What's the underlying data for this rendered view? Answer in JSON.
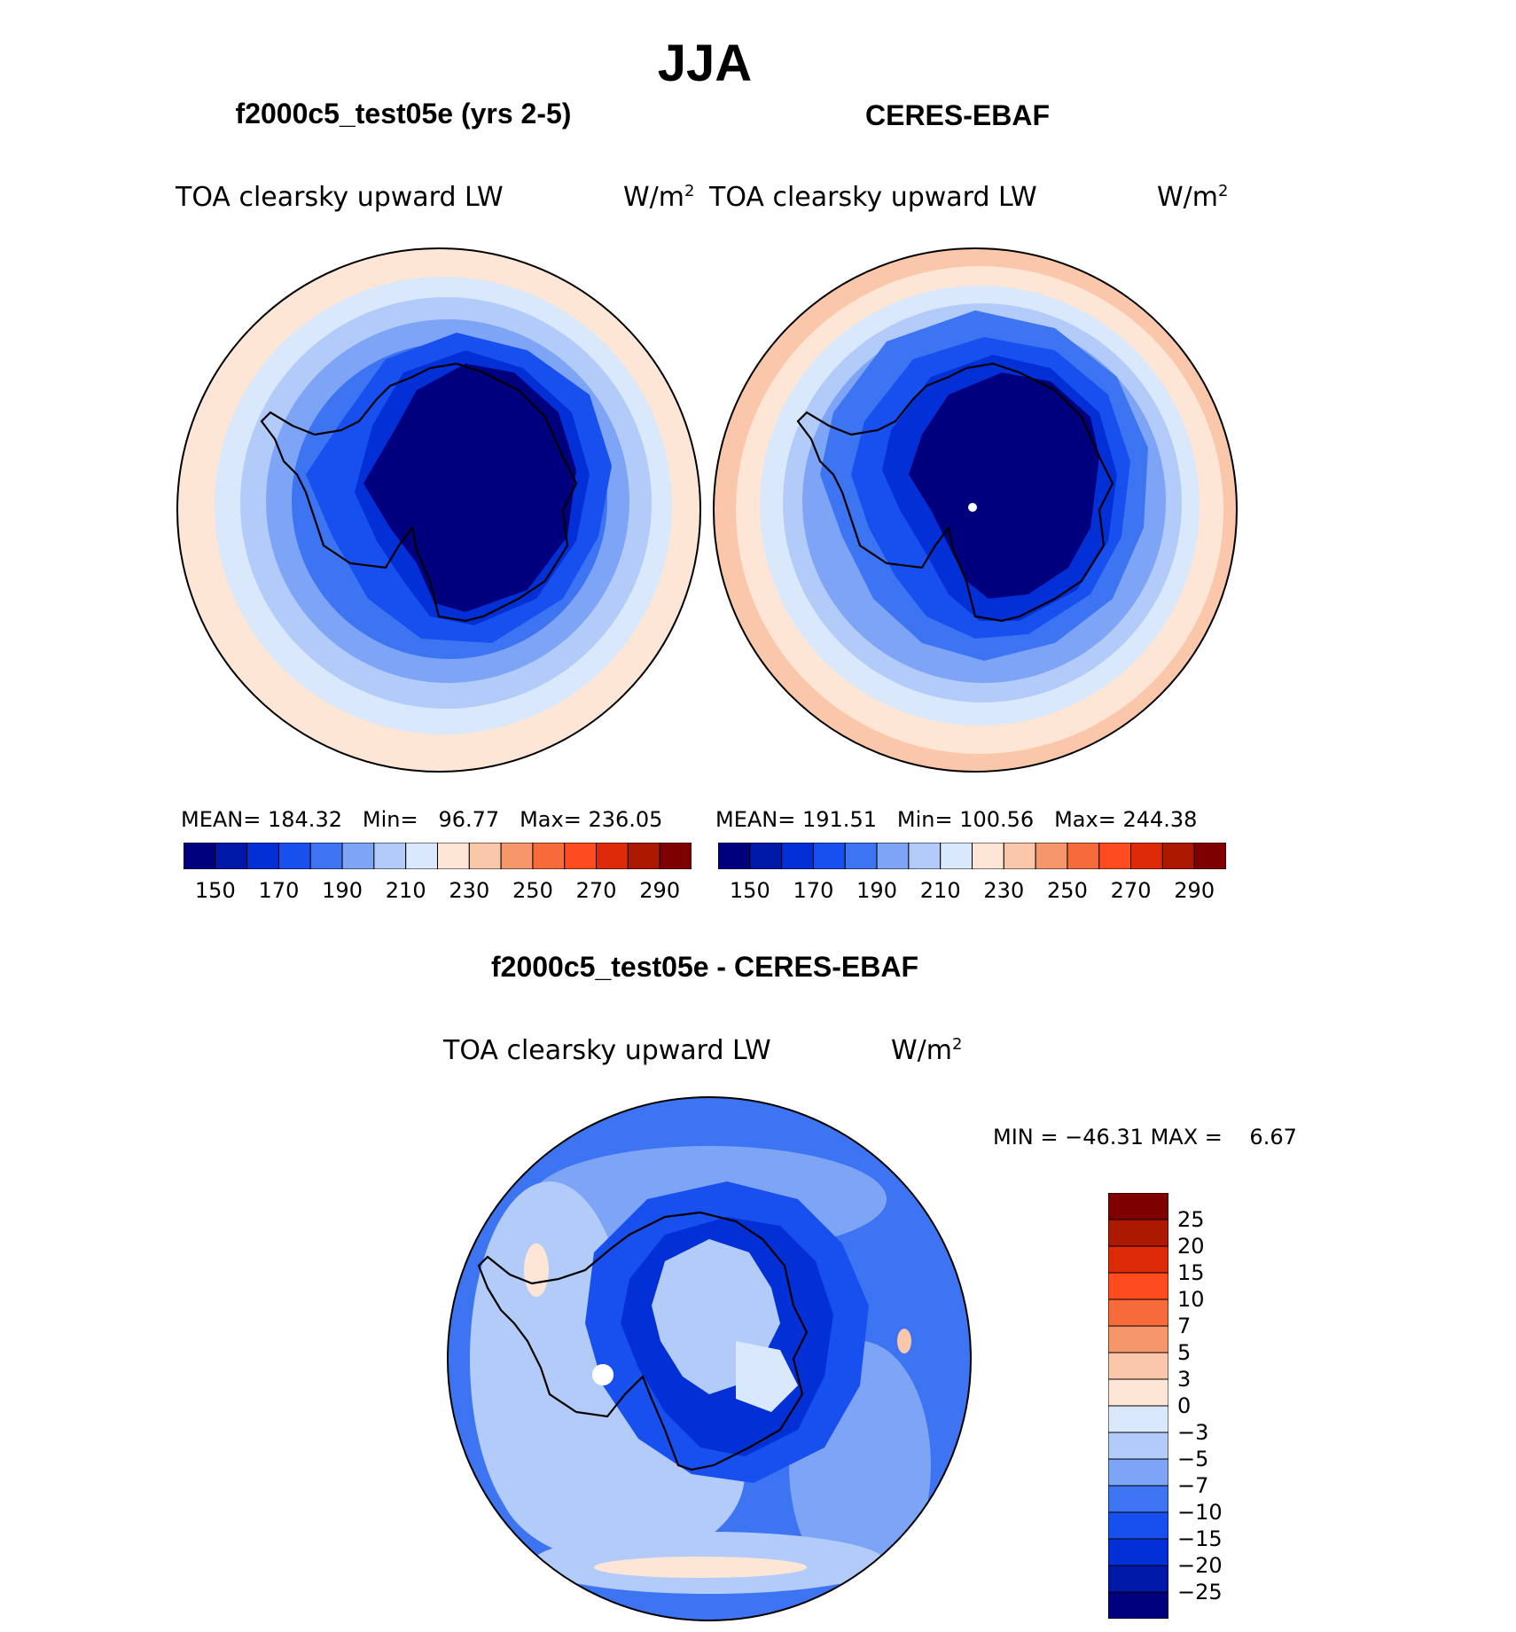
{
  "title": "JJA",
  "panels": [
    {
      "id": "model",
      "header": "f2000c5_test05e (yrs 2-5)",
      "field_label": "TOA clearsky upward LW",
      "units_base": "W/m",
      "units_exp": "2",
      "stats": {
        "mean_label": "MEAN=",
        "mean": "184.32",
        "min_label": "Min=",
        "min": "96.77",
        "max_label": "Max=",
        "max": "236.05"
      }
    },
    {
      "id": "obs",
      "header": "CERES-EBAF",
      "field_label": "TOA clearsky upward LW",
      "units_base": "W/m",
      "units_exp": "2",
      "stats": {
        "mean_label": "MEAN=",
        "mean": "191.51",
        "min_label": "Min=",
        "min": "100.56",
        "max_label": "Max=",
        "max": "244.38"
      }
    }
  ],
  "diff_panel": {
    "header": "f2000c5_test05e - CERES-EBAF",
    "field_label": "TOA clearsky upward LW",
    "units_base": "W/m",
    "units_exp": "2",
    "min_label": "MIN =",
    "min": "−46.31",
    "max_label": "MAX =",
    "max": "6.67"
  },
  "colorbar_abs": {
    "colors": [
      "#00007f",
      "#0018a8",
      "#0230d6",
      "#1850f0",
      "#3c74f2",
      "#7ea4f6",
      "#b2cbf8",
      "#d9e8fb",
      "#fde6d6",
      "#fbc7aa",
      "#f5976a",
      "#f76a3a",
      "#ff4b1d",
      "#dd2a08",
      "#ad1800",
      "#7f0000"
    ],
    "ticks": [
      "150",
      "170",
      "190",
      "210",
      "230",
      "250",
      "270",
      "290"
    ]
  },
  "colorbar_diff": {
    "colors": [
      "#00007f",
      "#0018a8",
      "#0230d6",
      "#1850f0",
      "#3c74f2",
      "#7ea4f6",
      "#b2cbf8",
      "#d9e8fb",
      "#fde6d6",
      "#fbc7aa",
      "#f5976a",
      "#f76a3a",
      "#ff4b1d",
      "#dd2a08",
      "#ad1800",
      "#7f0000"
    ],
    "ticks": [
      "25",
      "20",
      "15",
      "10",
      "7",
      "5",
      "3",
      "0",
      "−3",
      "−5",
      "−7",
      "−10",
      "−15",
      "−20",
      "−25"
    ]
  },
  "map_palette": {
    "ocean_warm": "#fde6d6",
    "ocean_warmer": "#fbc7aa",
    "ocean_warmest": "#f5976a",
    "pale_blue": "#d9e8fb",
    "light_blue": "#b2cbf8",
    "mid_blue": "#7ea4f6",
    "blue": "#3c74f2",
    "bright_blue": "#1850f0",
    "deep_blue": "#0230d6",
    "darker_blue": "#0018a8",
    "navy": "#00007f",
    "white": "#ffffff",
    "coast": "#000000"
  }
}
